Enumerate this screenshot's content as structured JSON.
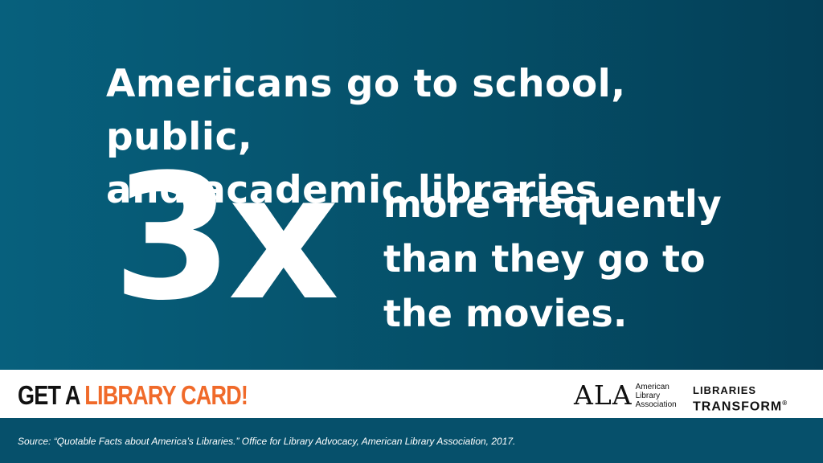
{
  "headline": {
    "line1": "Americans go to school, public,",
    "line2": "and academic libraries"
  },
  "stat": {
    "value": "3x",
    "line1": "more frequently",
    "line2": "than they go to",
    "line3": "the movies."
  },
  "cta": {
    "part1": "GET A ",
    "part2": "LIBRARY CARD!"
  },
  "ala_logo": {
    "letters": "ALA",
    "line1": "American",
    "line2": "Library",
    "line3": "Association"
  },
  "libraries_transform_logo": {
    "line1": "LIBRARIES",
    "line2": "TRANSFORM",
    "mark": "®"
  },
  "source": "Source: “Quotable Facts about America’s Libraries.” Office for Library Advocacy, American Library Association, 2017.",
  "colors": {
    "panel": "#055a75",
    "accent": "#f06a2a",
    "footer": "#06506b"
  }
}
